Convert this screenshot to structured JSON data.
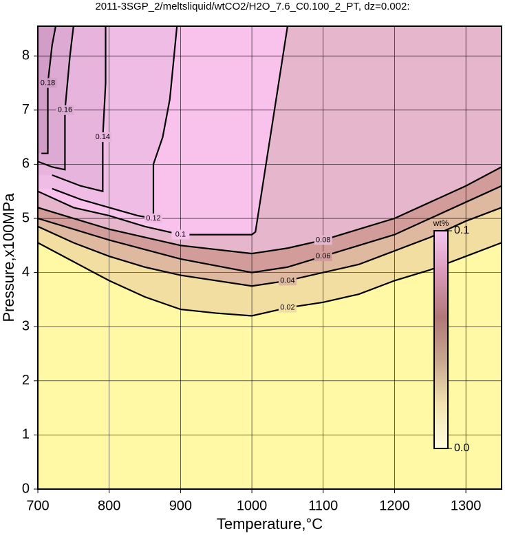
{
  "chart_data": {
    "type": "contour",
    "title": "2011-3SGP_2/meltsliquid/wtCO2/H2O_7.6_C0.100_2_PT, dz=0.002:",
    "x_label": "Temperature,°C",
    "y_label": "Pressure,x100MPa",
    "xlim": [
      700,
      1350
    ],
    "ylim": [
      0,
      8.55
    ],
    "xticks": [
      700,
      800,
      900,
      1000,
      1100,
      1200,
      1300
    ],
    "yticks": [
      0,
      1,
      2,
      3,
      4,
      5,
      6,
      7,
      8
    ],
    "grid": true,
    "background_color": "#fff9a6",
    "contours": [
      {
        "level": 0.02,
        "color": "#f3dea2",
        "x": [
          700,
          750,
          800,
          850,
          900,
          950,
          1000,
          1050,
          1100,
          1150,
          1200,
          1250,
          1300,
          1350
        ],
        "y": [
          4.55,
          4.2,
          3.85,
          3.55,
          3.32,
          3.25,
          3.2,
          3.35,
          3.45,
          3.6,
          3.85,
          4.05,
          4.3,
          4.55
        ]
      },
      {
        "level": 0.04,
        "color": "#dfb8a0",
        "x": [
          700,
          750,
          800,
          850,
          900,
          1000,
          1050,
          1100,
          1150,
          1200,
          1250,
          1300,
          1350
        ],
        "y": [
          4.85,
          4.55,
          4.3,
          4.1,
          3.95,
          3.75,
          3.85,
          4.0,
          4.15,
          4.4,
          4.65,
          4.95,
          5.2
        ]
      },
      {
        "level": 0.06,
        "color": "#d29c9a",
        "x": [
          700,
          750,
          800,
          900,
          1000,
          1050,
          1100,
          1150,
          1200,
          1250,
          1300,
          1350
        ],
        "y": [
          5.0,
          4.8,
          4.6,
          4.25,
          4.0,
          4.1,
          4.3,
          4.5,
          4.7,
          5.0,
          5.3,
          5.6
        ]
      },
      {
        "level": 0.08,
        "color": "#e6b6cc",
        "x": [
          700,
          750,
          800,
          900,
          1000,
          1050,
          1100,
          1150,
          1200,
          1250,
          1300,
          1350
        ],
        "y": [
          5.2,
          5.0,
          4.8,
          4.5,
          4.35,
          4.45,
          4.6,
          4.8,
          5.0,
          5.3,
          5.6,
          5.95
        ]
      },
      {
        "level": 0.1,
        "color": "#f8c2ec",
        "x": [
          700,
          750,
          800,
          850,
          900,
          1000,
          1005,
          1050
        ],
        "y": [
          5.5,
          5.2,
          5.05,
          4.85,
          4.7,
          4.7,
          4.75,
          8.55
        ]
      },
      {
        "level": 0.12,
        "color": "#efbce6",
        "x": [
          720,
          760,
          800,
          840,
          862,
          862,
          875,
          885,
          895
        ],
        "y": [
          5.55,
          5.35,
          5.2,
          5.05,
          5.0,
          6.0,
          6.5,
          7.2,
          8.55
        ]
      },
      {
        "level": 0.14,
        "color": "#e6b4dc",
        "x": [
          720,
          760,
          791,
          791,
          795,
          795
        ],
        "y": [
          5.8,
          5.6,
          5.5,
          6.5,
          7.5,
          8.55
        ]
      },
      {
        "level": 0.16,
        "color": "#dcaad2",
        "x": [
          700,
          720,
          738,
          738,
          745,
          750
        ],
        "y": [
          6.05,
          5.95,
          5.9,
          7.0,
          8.0,
          8.55
        ]
      },
      {
        "level": 0.18,
        "color": "#d29ec8",
        "x": [
          705,
          714,
          714,
          720,
          725
        ],
        "y": [
          6.2,
          6.2,
          7.5,
          8.2,
          8.55
        ]
      }
    ],
    "colorbar": {
      "label": "wt%",
      "range": [
        0,
        0.1
      ],
      "ticks": [
        {
          "value": 0,
          "label": "0.0"
        },
        {
          "value": 0.1,
          "label": "0.1"
        }
      ],
      "colors": [
        "#fffde0",
        "#f2e4b0",
        "#c8a890",
        "#b07878",
        "#d898b8",
        "#f4c8f0"
      ]
    }
  }
}
